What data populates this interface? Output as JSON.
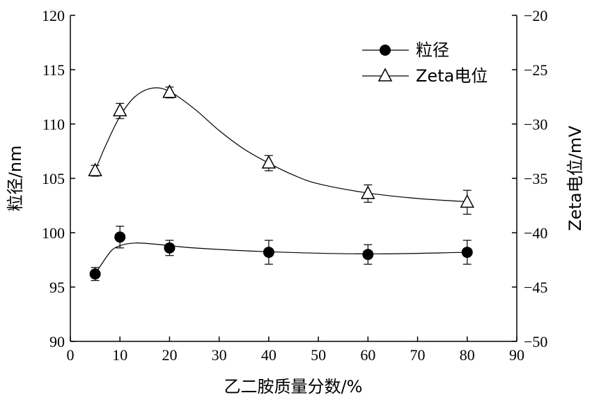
{
  "chart_data": {
    "type": "line",
    "title": "",
    "xlabel": "乙二胺质量分数/%",
    "ylabel_left": "粒径/nm",
    "ylabel_right": "Zeta电位/mV",
    "xlim": [
      0,
      90
    ],
    "xticks": [
      0,
      10,
      20,
      30,
      40,
      50,
      60,
      70,
      80,
      90
    ],
    "ylim_left": [
      90,
      120
    ],
    "yticks_left": [
      90,
      95,
      100,
      105,
      110,
      115,
      120
    ],
    "ylim_right": [
      -50,
      -20
    ],
    "yticks_right": [
      -50,
      -45,
      -40,
      -35,
      -30,
      -25,
      -20
    ],
    "ytick_labels_right": [
      "−50",
      "−45",
      "−40",
      "−35",
      "−30",
      "−25",
      "−20"
    ],
    "grid": false,
    "legend_position": "top-right",
    "series": [
      {
        "name": "粒径",
        "axis": "left",
        "marker": "filled-circle",
        "x": [
          5,
          10,
          20,
          40,
          60,
          80
        ],
        "y": [
          96.2,
          99.6,
          98.6,
          98.2,
          98.0,
          98.2
        ],
        "yerr": [
          0.6,
          1.0,
          0.7,
          1.1,
          0.9,
          1.1
        ],
        "fit_curve": [
          [
            5,
            96.2
          ],
          [
            8,
            98.2
          ],
          [
            10,
            98.8
          ],
          [
            13,
            99.05
          ],
          [
            17,
            98.95
          ],
          [
            25,
            98.6
          ],
          [
            40,
            98.25
          ],
          [
            60,
            98.05
          ],
          [
            80,
            98.2
          ]
        ]
      },
      {
        "name": "Zeta电位",
        "axis": "right",
        "marker": "open-triangle",
        "x": [
          5,
          10,
          20,
          40,
          60,
          80
        ],
        "y": [
          -34.3,
          -28.8,
          -27.1,
          -33.6,
          -36.4,
          -37.2
        ],
        "yerr": [
          0.5,
          0.7,
          0.5,
          0.7,
          0.8,
          1.1
        ],
        "fit_curve": [
          [
            5,
            -34.3
          ],
          [
            7,
            -32.1
          ],
          [
            10,
            -29.3
          ],
          [
            13,
            -27.5
          ],
          [
            16.5,
            -26.7
          ],
          [
            20,
            -27.0
          ],
          [
            25,
            -28.6
          ],
          [
            30,
            -30.6
          ],
          [
            35,
            -32.3
          ],
          [
            40,
            -33.6
          ],
          [
            45,
            -34.7
          ],
          [
            50,
            -35.5
          ],
          [
            60,
            -36.35
          ],
          [
            70,
            -36.85
          ],
          [
            80,
            -37.15
          ]
        ]
      }
    ]
  }
}
